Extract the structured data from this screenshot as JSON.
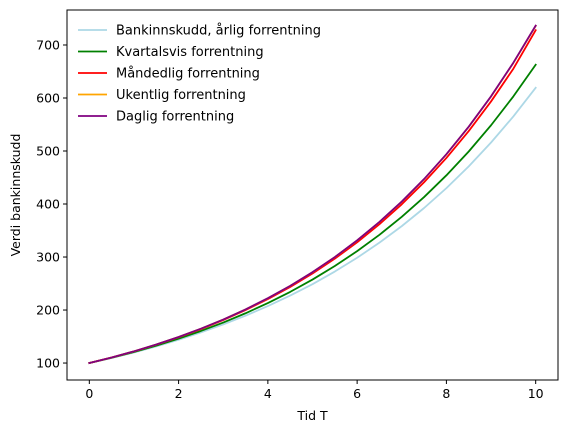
{
  "chart_data": {
    "type": "line",
    "title": "",
    "xlabel": "Tid T",
    "ylabel": "Verdi bankinnskudd",
    "xlim": [
      -0.5,
      10.5
    ],
    "ylim": [
      68,
      766
    ],
    "xticks": [
      0,
      2,
      4,
      6,
      8,
      10
    ],
    "yticks": [
      100,
      200,
      300,
      400,
      500,
      600,
      700
    ],
    "grid": false,
    "legend_position": "top-left",
    "x": [
      0,
      0.5,
      1,
      1.5,
      2,
      2.5,
      3,
      3.5,
      4,
      4.5,
      5,
      5.5,
      6,
      6.5,
      7,
      7.5,
      8,
      8.5,
      9,
      9.5,
      10
    ],
    "series": [
      {
        "name": "Bankinnskudd, årlig forrentning",
        "color": "#add8e6",
        "values": [
          100,
          109.5,
          120.0,
          131.4,
          144.0,
          157.7,
          172.8,
          189.3,
          207.4,
          227.2,
          248.8,
          272.6,
          298.6,
          327.1,
          358.3,
          392.5,
          430.0,
          471.0,
          516.0,
          565.2,
          619.2
        ]
      },
      {
        "name": "Kvartalsvis forrentning",
        "color": "#008000",
        "values": [
          100,
          109.9,
          120.8,
          132.8,
          146.0,
          160.5,
          176.4,
          193.9,
          213.1,
          234.2,
          257.5,
          283.0,
          311.1,
          341.9,
          375.8,
          413.1,
          454.1,
          499.1,
          548.6,
          603.0,
          662.8
        ]
      },
      {
        "name": "Måndedlig forrentning",
        "color": "#ff0000",
        "values": [
          100,
          110.4,
          121.9,
          134.6,
          148.6,
          164.0,
          181.1,
          199.9,
          220.7,
          243.6,
          269.0,
          296.9,
          327.8,
          361.9,
          399.5,
          441.1,
          486.9,
          537.6,
          593.5,
          655.2,
          727.8
        ]
      },
      {
        "name": "Ukentlig forrentning",
        "color": "#ffa500",
        "values": [
          100,
          110.5,
          122.1,
          134.9,
          149.1,
          164.7,
          182.0,
          201.1,
          222.2,
          245.5,
          271.3,
          299.8,
          331.2,
          366.0,
          404.4,
          446.8,
          493.7,
          545.6,
          602.8,
          666.1,
          736.0
        ]
      },
      {
        "name": "Daglig forrentning",
        "color": "#800080",
        "values": [
          100,
          110.5,
          122.1,
          134.9,
          149.1,
          164.8,
          182.1,
          201.2,
          222.3,
          245.6,
          271.4,
          299.9,
          331.4,
          366.2,
          404.6,
          447.1,
          494.0,
          545.9,
          603.2,
          666.6,
          736.5
        ]
      }
    ]
  }
}
